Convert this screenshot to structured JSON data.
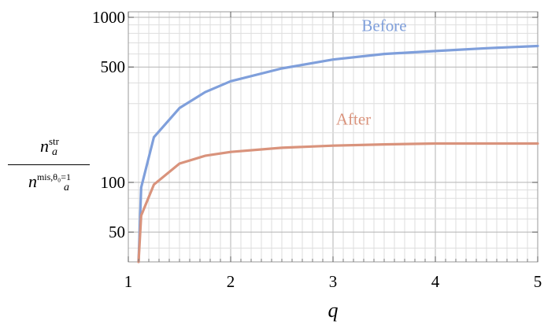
{
  "chart_data": {
    "type": "line",
    "title": "",
    "xlabel": "q",
    "ylabel": {
      "numerator": {
        "base": "n",
        "sup": "str",
        "sub": "a"
      },
      "denominator": {
        "base": "n",
        "sup": "mis,θ₀=1",
        "sub": "a"
      }
    },
    "xlim": [
      1,
      5
    ],
    "ylim": [
      33,
      1080
    ],
    "yscale": "log",
    "grid": true,
    "x_ticks": [
      "1",
      "2",
      "3",
      "4",
      "5"
    ],
    "y_ticks": [
      "50",
      "100",
      "500",
      "1000"
    ],
    "series": [
      {
        "name": "Before",
        "color": "#7f9fdb",
        "x": [
          1.1,
          1.125,
          1.25,
          1.5,
          1.75,
          2,
          2.5,
          3,
          3.5,
          4,
          4.5,
          5
        ],
        "y": [
          33,
          93,
          188,
          282,
          352,
          410,
          490,
          555,
          600,
          625,
          650,
          670
        ]
      },
      {
        "name": "After",
        "color": "#d9937c",
        "x": [
          1.1,
          1.125,
          1.25,
          1.5,
          1.75,
          2,
          2.5,
          3,
          3.5,
          4,
          4.5,
          5
        ],
        "y": [
          33,
          63,
          97,
          130,
          145,
          153,
          162,
          167,
          170,
          172,
          172,
          172
        ]
      }
    ]
  }
}
